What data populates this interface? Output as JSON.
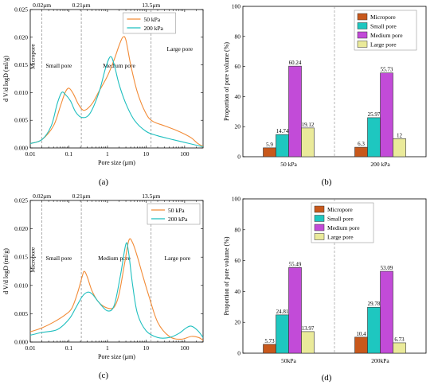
{
  "panels": [
    {
      "type": "line",
      "caption": "(a)",
      "xlabel": "Pore size (μm)",
      "ylabel": "d V/d logD (ml/g)",
      "xscale": "log",
      "xlim": [
        0.01,
        300
      ],
      "xticks": [
        0.01,
        0.1,
        1,
        10,
        100
      ],
      "xtick_labels": [
        "0.01",
        "0.1",
        "1",
        "10",
        "100"
      ],
      "ylim": [
        0,
        0.025
      ],
      "yticks": [
        0,
        0.005,
        0.01,
        0.015,
        0.02,
        0.025
      ],
      "ytick_labels": [
        "0.000",
        "0.005",
        "0.010",
        "0.015",
        "0.020",
        "0.025"
      ],
      "boundaries": [
        {
          "x": 0.02,
          "label": "0.02μm"
        },
        {
          "x": 0.21,
          "label": "0.21μm"
        },
        {
          "x": 13.5,
          "label": "13.5μm"
        }
      ],
      "zones": [
        {
          "label": "Micropore",
          "x": 0.013,
          "y": 0.0165,
          "vertical": true
        },
        {
          "label": "Small pore",
          "x": 0.055,
          "y": 0.0145
        },
        {
          "label": "Medium pore",
          "x": 2.0,
          "y": 0.0145
        },
        {
          "label": "Large pore",
          "x": 75,
          "y": 0.0175
        }
      ],
      "legend_position": "top-center",
      "series": [
        {
          "name": "50 kPa",
          "color": "#f28c38",
          "points": [
            [
              0.01,
              0.0008
            ],
            [
              0.02,
              0.0015
            ],
            [
              0.04,
              0.004
            ],
            [
              0.06,
              0.0075
            ],
            [
              0.08,
              0.01
            ],
            [
              0.1,
              0.0108
            ],
            [
              0.13,
              0.0098
            ],
            [
              0.18,
              0.0078
            ],
            [
              0.25,
              0.0068
            ],
            [
              0.4,
              0.008
            ],
            [
              0.6,
              0.0102
            ],
            [
              1.0,
              0.013
            ],
            [
              1.5,
              0.016
            ],
            [
              2.0,
              0.0185
            ],
            [
              2.5,
              0.02
            ],
            [
              3.0,
              0.0195
            ],
            [
              4.0,
              0.015
            ],
            [
              6.0,
              0.01
            ],
            [
              10,
              0.0062
            ],
            [
              15,
              0.0048
            ],
            [
              30,
              0.004
            ],
            [
              60,
              0.0032
            ],
            [
              100,
              0.0025
            ],
            [
              150,
              0.0018
            ],
            [
              220,
              0.0008
            ],
            [
              300,
              0.0003
            ]
          ]
        },
        {
          "name": "200 kPa",
          "color": "#1fbfbf",
          "points": [
            [
              0.01,
              0.0008
            ],
            [
              0.02,
              0.0015
            ],
            [
              0.035,
              0.004
            ],
            [
              0.05,
              0.008
            ],
            [
              0.065,
              0.01
            ],
            [
              0.08,
              0.0097
            ],
            [
              0.11,
              0.0085
            ],
            [
              0.15,
              0.0065
            ],
            [
              0.22,
              0.0055
            ],
            [
              0.35,
              0.0062
            ],
            [
              0.6,
              0.01
            ],
            [
              0.9,
              0.0145
            ],
            [
              1.2,
              0.0165
            ],
            [
              1.5,
              0.015
            ],
            [
              2.0,
              0.0115
            ],
            [
              3.0,
              0.008
            ],
            [
              5.0,
              0.005
            ],
            [
              10,
              0.003
            ],
            [
              20,
              0.0022
            ],
            [
              50,
              0.0015
            ],
            [
              100,
              0.001
            ],
            [
              200,
              0.0005
            ],
            [
              300,
              0.0002
            ]
          ]
        }
      ]
    },
    {
      "type": "bar",
      "caption": "(b)",
      "ylabel": "Proportion of pore volume (%)",
      "ylim": [
        0,
        100
      ],
      "yticks": [
        0,
        20,
        40,
        60,
        80,
        100
      ],
      "categories": [
        "50 kPa",
        "200 kPa"
      ],
      "legend_position": "top-left",
      "series": [
        {
          "name": "Micropore",
          "color": "#c8581b",
          "values": [
            5.9,
            6.3
          ],
          "labels": [
            "5.9",
            "6.3"
          ]
        },
        {
          "name": "Small pore",
          "color": "#1ec7c0",
          "values": [
            14.74,
            25.97
          ],
          "labels": [
            "14.74",
            "25.97"
          ]
        },
        {
          "name": "Medium pore",
          "color": "#c24bd8",
          "values": [
            60.24,
            55.73
          ],
          "labels": [
            "60.24",
            "55.73"
          ]
        },
        {
          "name": "Large pore",
          "color": "#eaea9a",
          "values": [
            19.12,
            12
          ],
          "labels": [
            "19.12",
            "12"
          ]
        }
      ]
    },
    {
      "type": "line",
      "caption": "(c)",
      "xlabel": "Pore size (μm)",
      "ylabel": "d V/d logD (ml/g)",
      "xscale": "log",
      "xlim": [
        0.01,
        300
      ],
      "xticks": [
        0.01,
        0.1,
        1,
        10,
        100
      ],
      "xtick_labels": [
        "0.01",
        "0.1",
        "1",
        "10",
        "100"
      ],
      "ylim": [
        0,
        0.025
      ],
      "yticks": [
        0,
        0.005,
        0.01,
        0.015,
        0.02,
        0.025
      ],
      "ytick_labels": [
        "0.000",
        "0.005",
        "0.010",
        "0.015",
        "0.020",
        "0.025"
      ],
      "boundaries": [
        {
          "x": 0.02,
          "label": "0.02μm"
        },
        {
          "x": 0.21,
          "label": "0.21μm"
        },
        {
          "x": 13.5,
          "label": "13.5μm"
        }
      ],
      "zones": [
        {
          "label": "Micropore",
          "x": 0.013,
          "y": 0.0145,
          "vertical": true
        },
        {
          "label": "Small pore",
          "x": 0.055,
          "y": 0.0145
        },
        {
          "label": "Medium pore",
          "x": 1.5,
          "y": 0.0145
        },
        {
          "label": "Large pore",
          "x": 65,
          "y": 0.0145
        }
      ],
      "legend_position": "top-right",
      "series": [
        {
          "name": "50 kPa",
          "color": "#f28c38",
          "points": [
            [
              0.01,
              0.0018
            ],
            [
              0.02,
              0.0025
            ],
            [
              0.04,
              0.0035
            ],
            [
              0.08,
              0.0048
            ],
            [
              0.12,
              0.006
            ],
            [
              0.17,
              0.0088
            ],
            [
              0.22,
              0.0115
            ],
            [
              0.25,
              0.0125
            ],
            [
              0.3,
              0.0115
            ],
            [
              0.4,
              0.009
            ],
            [
              0.6,
              0.007
            ],
            [
              1.0,
              0.006
            ],
            [
              1.5,
              0.0062
            ],
            [
              2.0,
              0.0085
            ],
            [
              2.8,
              0.014
            ],
            [
              3.6,
              0.018
            ],
            [
              4.5,
              0.0175
            ],
            [
              6.0,
              0.015
            ],
            [
              8.0,
              0.012
            ],
            [
              12,
              0.008
            ],
            [
              20,
              0.0035
            ],
            [
              40,
              0.001
            ],
            [
              80,
              0.0005
            ],
            [
              150,
              0.001
            ],
            [
              230,
              0.0008
            ],
            [
              300,
              0.0003
            ]
          ]
        },
        {
          "name": "200 kPa",
          "color": "#1fbfbf",
          "points": [
            [
              0.01,
              0.0012
            ],
            [
              0.02,
              0.0017
            ],
            [
              0.05,
              0.0022
            ],
            [
              0.1,
              0.004
            ],
            [
              0.15,
              0.006
            ],
            [
              0.22,
              0.008
            ],
            [
              0.3,
              0.0088
            ],
            [
              0.4,
              0.0085
            ],
            [
              0.6,
              0.007
            ],
            [
              1.0,
              0.0055
            ],
            [
              1.5,
              0.0065
            ],
            [
              2.2,
              0.012
            ],
            [
              3.0,
              0.0173
            ],
            [
              3.5,
              0.016
            ],
            [
              4.5,
              0.01
            ],
            [
              6.0,
              0.005
            ],
            [
              10,
              0.002
            ],
            [
              20,
              0.0008
            ],
            [
              40,
              0.0008
            ],
            [
              70,
              0.0015
            ],
            [
              110,
              0.0025
            ],
            [
              150,
              0.0028
            ],
            [
              220,
              0.002
            ],
            [
              300,
              0.0008
            ]
          ]
        }
      ]
    },
    {
      "type": "bar",
      "caption": "(d)",
      "ylabel": "Proportion of pore volume (%)",
      "ylim": [
        0,
        100
      ],
      "yticks": [
        0,
        20,
        40,
        60,
        80,
        100
      ],
      "categories": [
        "50kPa",
        "200kPa"
      ],
      "legend_position": "top-right",
      "series": [
        {
          "name": "Micropore",
          "color": "#c8581b",
          "values": [
            5.73,
            10.4
          ],
          "labels": [
            "5.73",
            "10.4"
          ]
        },
        {
          "name": "Small pore",
          "color": "#1ec7c0",
          "values": [
            24.81,
            29.78
          ],
          "labels": [
            "24.81",
            "29.78"
          ]
        },
        {
          "name": "Medium pore",
          "color": "#c24bd8",
          "values": [
            55.49,
            53.09
          ],
          "labels": [
            "55.49",
            "53.09"
          ]
        },
        {
          "name": "Large pore",
          "color": "#eaea9a",
          "values": [
            13.97,
            6.73
          ],
          "labels": [
            "13.97",
            "6.73"
          ]
        }
      ]
    }
  ]
}
